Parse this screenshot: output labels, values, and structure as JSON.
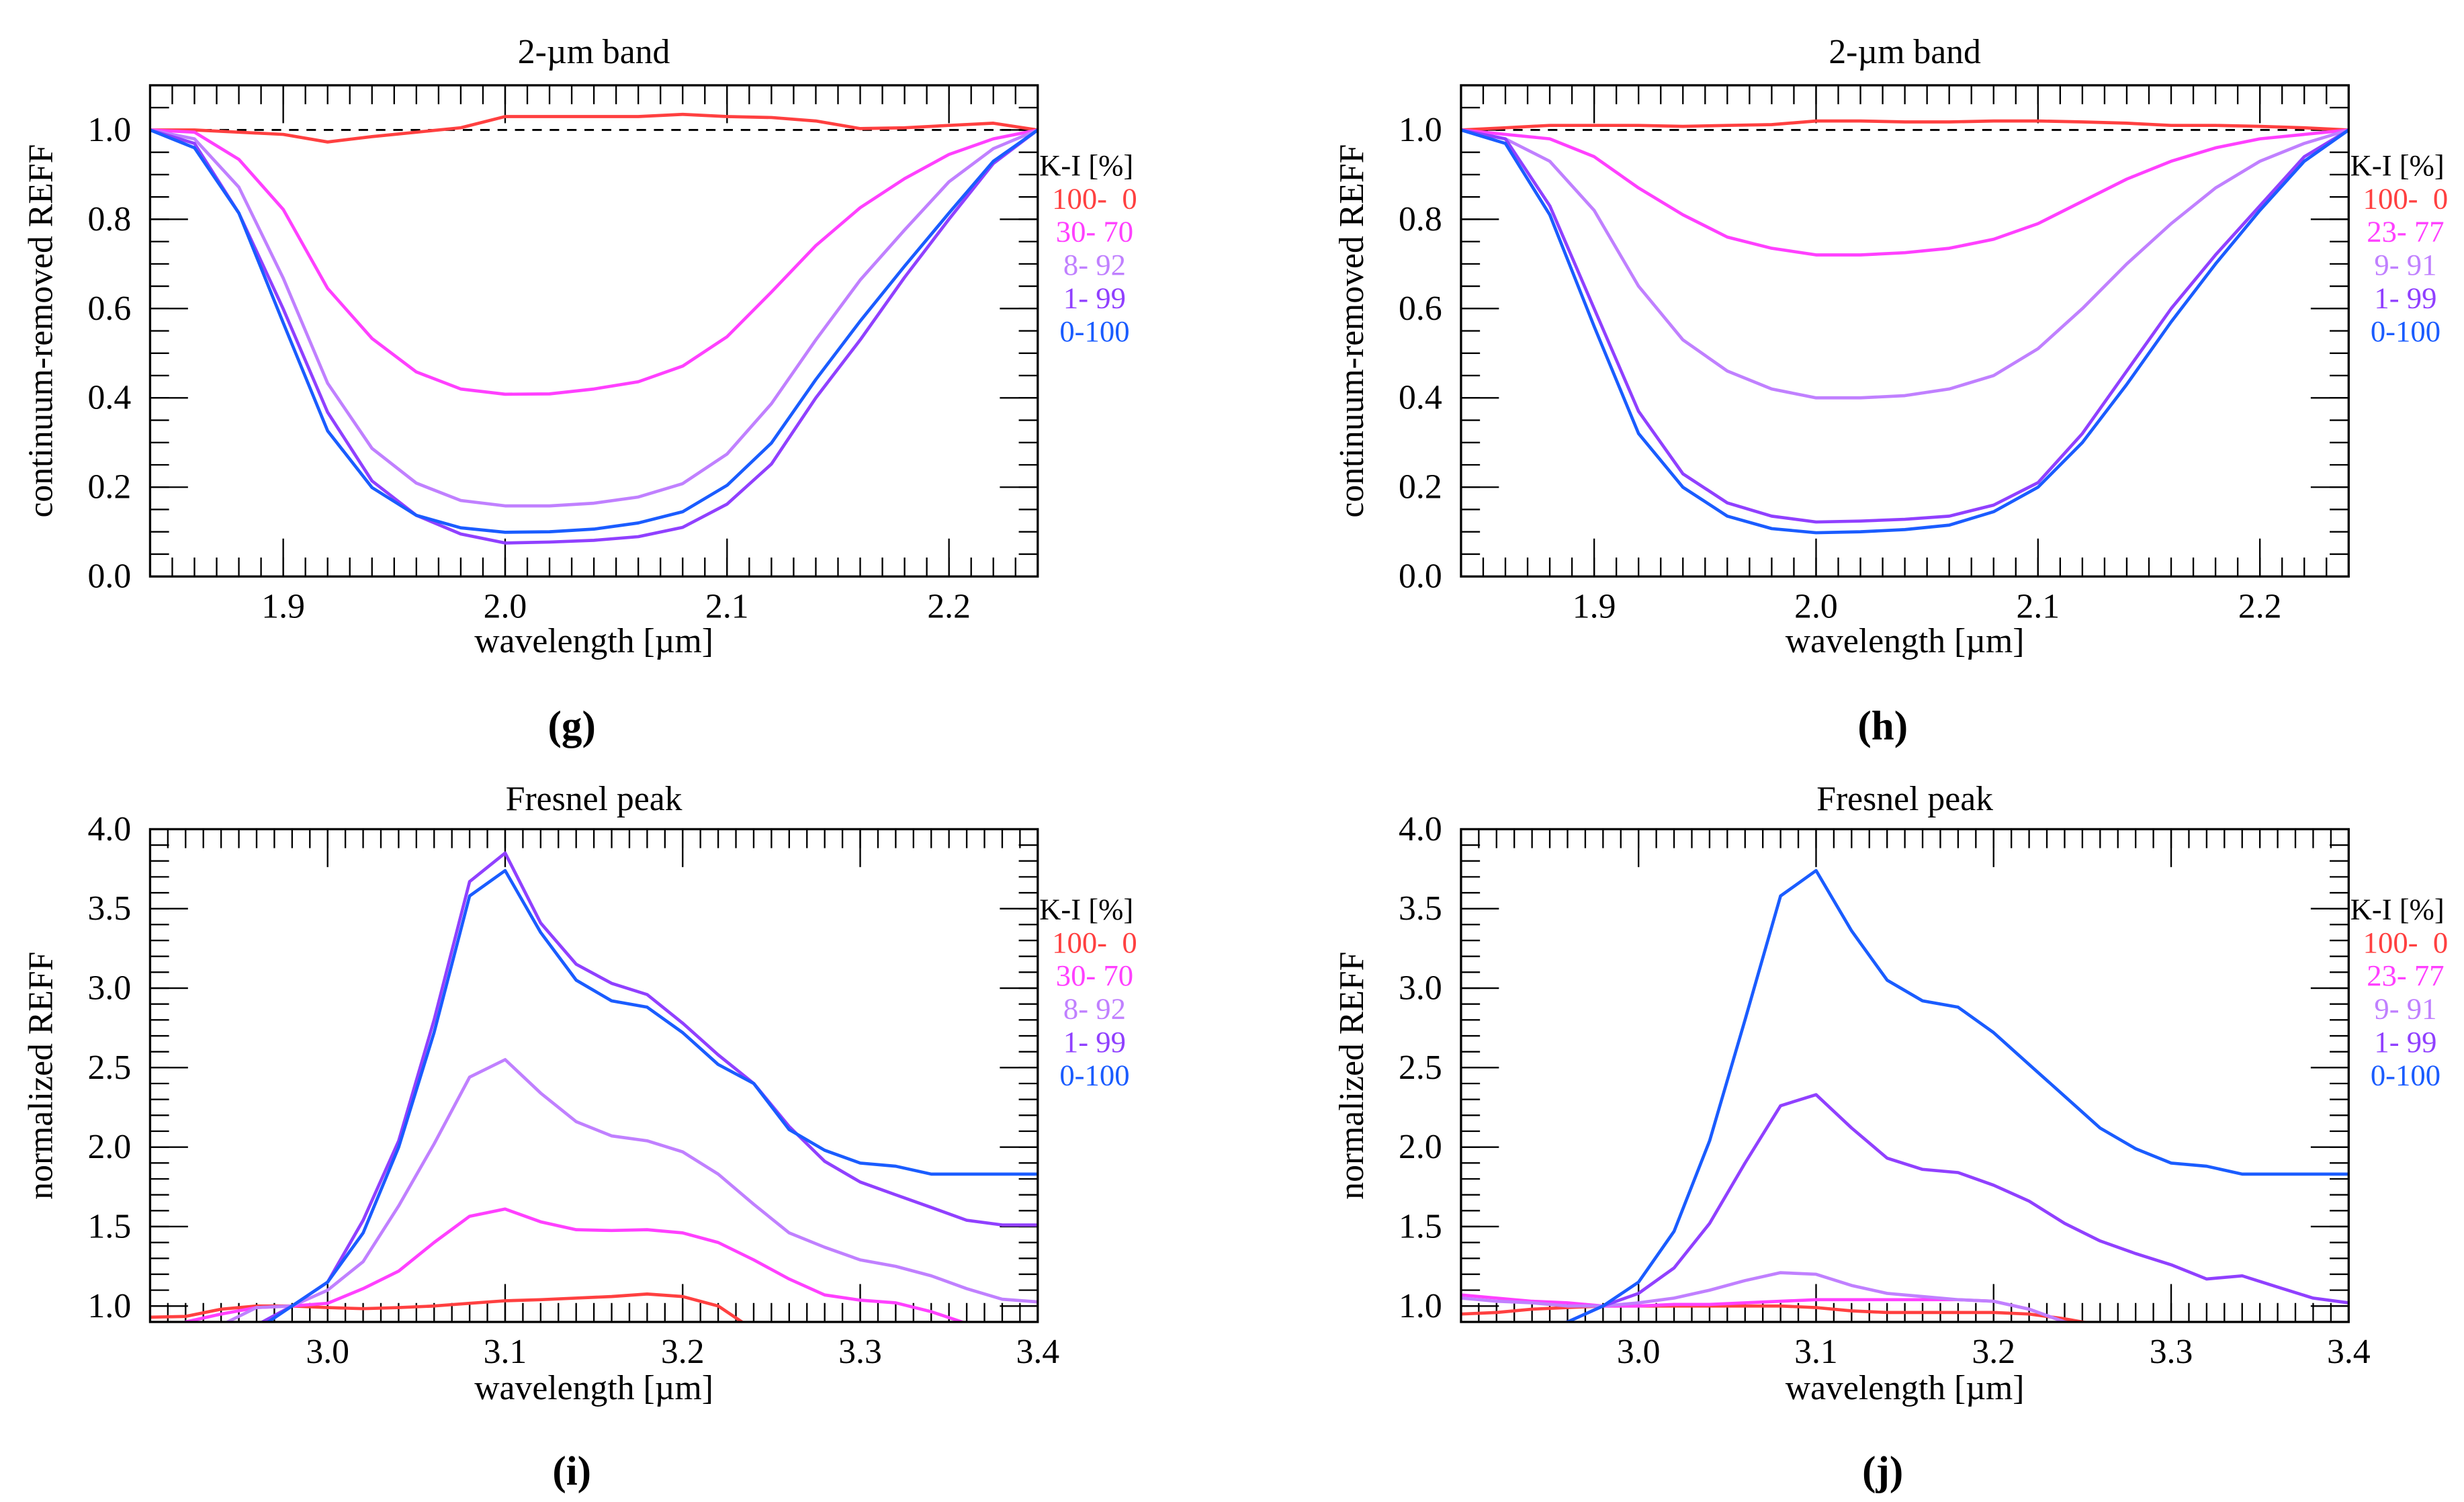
{
  "chart_data": [
    {
      "panel_label": "(g)",
      "type": "line",
      "title": "2-µm band",
      "xlabel": "wavelength [µm]",
      "ylabel": "continuum-removed REFF",
      "xlim": [
        1.84,
        2.24
      ],
      "ylim": [
        0.0,
        1.1
      ],
      "xticks": [
        1.9,
        2.0,
        2.1,
        2.2
      ],
      "xtick_labels": [
        "1.9",
        "2.0",
        "2.1",
        "2.2"
      ],
      "yticks": [
        0.0,
        0.2,
        0.4,
        0.6,
        0.8,
        1.0
      ],
      "ytick_labels": [
        "0.0",
        "0.2",
        "0.4",
        "0.6",
        "0.8",
        "1.0"
      ],
      "reference_line": 1.0,
      "legend_title": "K-I [%]",
      "legend_position": "right",
      "x": [
        1.84,
        1.86,
        1.88,
        1.9,
        1.92,
        1.94,
        1.96,
        1.98,
        2.0,
        2.02,
        2.04,
        2.06,
        2.08,
        2.1,
        2.12,
        2.14,
        2.16,
        2.18,
        2.2,
        2.22,
        2.24
      ],
      "series": [
        {
          "name": "100-  0",
          "color": "#ff4040",
          "values": [
            1.0,
            1.0,
            0.995,
            0.99,
            0.973,
            0.985,
            0.995,
            1.005,
            1.03,
            1.03,
            1.03,
            1.03,
            1.035,
            1.03,
            1.028,
            1.02,
            1.003,
            1.005,
            1.01,
            1.015,
            1.0
          ]
        },
        {
          "name": "30- 70",
          "color": "#ff40ff",
          "values": [
            1.0,
            0.995,
            0.934,
            0.822,
            0.645,
            0.533,
            0.458,
            0.42,
            0.408,
            0.409,
            0.42,
            0.436,
            0.471,
            0.537,
            0.637,
            0.741,
            0.826,
            0.891,
            0.945,
            0.98,
            1.0
          ]
        },
        {
          "name": "8- 92",
          "color": "#c080ff",
          "values": [
            1.0,
            0.98,
            0.872,
            0.668,
            0.433,
            0.287,
            0.209,
            0.17,
            0.158,
            0.158,
            0.164,
            0.178,
            0.208,
            0.274,
            0.387,
            0.53,
            0.664,
            0.776,
            0.884,
            0.958,
            1.0
          ]
        },
        {
          "name": "1- 99",
          "color": "#9040ff",
          "values": [
            1.0,
            0.97,
            0.814,
            0.599,
            0.368,
            0.214,
            0.137,
            0.095,
            0.075,
            0.077,
            0.081,
            0.089,
            0.11,
            0.162,
            0.252,
            0.4,
            0.53,
            0.67,
            0.8,
            0.925,
            1.0
          ]
        },
        {
          "name": "0-100",
          "color": "#1a5cff",
          "values": [
            1.0,
            0.96,
            0.814,
            0.568,
            0.326,
            0.199,
            0.137,
            0.109,
            0.099,
            0.1,
            0.106,
            0.12,
            0.145,
            0.204,
            0.299,
            0.441,
            0.572,
            0.695,
            0.814,
            0.93,
            1.0
          ]
        }
      ]
    },
    {
      "panel_label": "(h)",
      "type": "line",
      "title": "2-µm band",
      "xlabel": "wavelength [µm]",
      "ylabel": "continuum-removed REFF",
      "xlim": [
        1.84,
        2.24
      ],
      "ylim": [
        0.0,
        1.1
      ],
      "xticks": [
        1.9,
        2.0,
        2.1,
        2.2
      ],
      "xtick_labels": [
        "1.9",
        "2.0",
        "2.1",
        "2.2"
      ],
      "yticks": [
        0.0,
        0.2,
        0.4,
        0.6,
        0.8,
        1.0
      ],
      "ytick_labels": [
        "0.0",
        "0.2",
        "0.4",
        "0.6",
        "0.8",
        "1.0"
      ],
      "reference_line": 1.0,
      "legend_title": "K-I [%]",
      "legend_position": "right",
      "x": [
        1.84,
        1.86,
        1.88,
        1.9,
        1.92,
        1.94,
        1.96,
        1.98,
        2.0,
        2.02,
        2.04,
        2.06,
        2.08,
        2.1,
        2.12,
        2.14,
        2.16,
        2.18,
        2.2,
        2.22,
        2.24
      ],
      "series": [
        {
          "name": "100-  0",
          "color": "#ff4040",
          "values": [
            1.0,
            1.005,
            1.01,
            1.01,
            1.01,
            1.008,
            1.01,
            1.012,
            1.02,
            1.02,
            1.018,
            1.018,
            1.02,
            1.02,
            1.018,
            1.015,
            1.01,
            1.01,
            1.008,
            1.005,
            1.0
          ]
        },
        {
          "name": "23- 77",
          "color": "#ff40ff",
          "values": [
            1.0,
            0.99,
            0.98,
            0.94,
            0.87,
            0.81,
            0.76,
            0.735,
            0.72,
            0.72,
            0.725,
            0.735,
            0.755,
            0.79,
            0.84,
            0.89,
            0.93,
            0.96,
            0.98,
            0.99,
            1.0
          ]
        },
        {
          "name": "9- 91",
          "color": "#c080ff",
          "values": [
            1.0,
            0.98,
            0.93,
            0.82,
            0.65,
            0.53,
            0.46,
            0.42,
            0.4,
            0.4,
            0.405,
            0.42,
            0.45,
            0.51,
            0.6,
            0.7,
            0.79,
            0.87,
            0.93,
            0.97,
            1.0
          ]
        },
        {
          "name": "1- 99",
          "color": "#9040ff",
          "values": [
            1.0,
            0.98,
            0.83,
            0.6,
            0.37,
            0.23,
            0.165,
            0.135,
            0.122,
            0.124,
            0.128,
            0.135,
            0.16,
            0.21,
            0.32,
            0.46,
            0.6,
            0.72,
            0.83,
            0.94,
            1.0
          ]
        },
        {
          "name": "0-100",
          "color": "#1a5cff",
          "values": [
            1.0,
            0.97,
            0.81,
            0.56,
            0.32,
            0.2,
            0.135,
            0.107,
            0.098,
            0.1,
            0.105,
            0.115,
            0.145,
            0.2,
            0.3,
            0.43,
            0.57,
            0.7,
            0.82,
            0.93,
            1.0
          ]
        }
      ]
    },
    {
      "panel_label": "(i)",
      "type": "line",
      "title": "Fresnel peak",
      "xlabel": "wavelength [µm]",
      "ylabel": "normalized REFF",
      "xlim": [
        2.9,
        3.4
      ],
      "ylim": [
        0.9,
        4.0
      ],
      "xticks": [
        3.0,
        3.1,
        3.2,
        3.3,
        3.4
      ],
      "xtick_labels": [
        "3.0",
        "3.1",
        "3.2",
        "3.3",
        "3.4"
      ],
      "yticks": [
        1.0,
        1.5,
        2.0,
        2.5,
        3.0,
        3.5,
        4.0
      ],
      "ytick_labels": [
        "1.0",
        "1.5",
        "2.0",
        "2.5",
        "3.0",
        "3.5",
        "4.0"
      ],
      "legend_title": "K-I [%]",
      "legend_position": "right",
      "x": [
        2.9,
        2.92,
        2.94,
        2.96,
        2.98,
        3.0,
        3.02,
        3.04,
        3.06,
        3.08,
        3.1,
        3.12,
        3.14,
        3.16,
        3.18,
        3.2,
        3.22,
        3.24,
        3.26,
        3.28,
        3.3,
        3.32,
        3.34,
        3.36,
        3.38,
        3.4
      ],
      "series": [
        {
          "name": "100-  0",
          "color": "#ff4040",
          "values": [
            0.93,
            0.935,
            0.98,
            1.0,
            1.0,
            0.99,
            0.983,
            0.99,
            1.0,
            1.017,
            1.033,
            1.04,
            1.05,
            1.06,
            1.076,
            1.06,
            1.0,
            0.85,
            0.8,
            0.8,
            0.8,
            0.8,
            0.8,
            0.8,
            0.8,
            0.8
          ]
        },
        {
          "name": "30- 70",
          "color": "#ff40ff",
          "values": [
            0.8,
            0.9,
            0.95,
            0.99,
            1.0,
            1.017,
            1.11,
            1.22,
            1.4,
            1.565,
            1.61,
            1.53,
            1.48,
            1.475,
            1.48,
            1.46,
            1.4,
            1.29,
            1.17,
            1.07,
            1.037,
            1.02,
            0.965,
            0.89,
            0.85,
            0.8
          ]
        },
        {
          "name": "8- 92",
          "color": "#c080ff",
          "values": [
            0.8,
            0.8,
            0.88,
            0.99,
            1.0,
            1.1,
            1.28,
            1.63,
            2.02,
            2.44,
            2.55,
            2.34,
            2.16,
            2.07,
            2.04,
            1.97,
            1.83,
            1.64,
            1.46,
            1.37,
            1.29,
            1.25,
            1.19,
            1.11,
            1.043,
            1.026
          ]
        },
        {
          "name": "1- 99",
          "color": "#9040ff",
          "values": [
            0.7,
            0.75,
            0.8,
            0.88,
            1.0,
            1.15,
            1.54,
            2.04,
            2.8,
            3.67,
            3.85,
            3.41,
            3.15,
            3.03,
            2.96,
            2.78,
            2.58,
            2.4,
            2.13,
            1.91,
            1.78,
            1.7,
            1.62,
            1.54,
            1.51,
            1.51
          ]
        },
        {
          "name": "0-100",
          "color": "#1a5cff",
          "values": [
            0.6,
            0.65,
            0.7,
            0.85,
            1.0,
            1.15,
            1.46,
            2.0,
            2.72,
            3.58,
            3.74,
            3.35,
            3.05,
            2.92,
            2.88,
            2.72,
            2.52,
            2.4,
            2.11,
            1.98,
            1.9,
            1.88,
            1.83,
            1.83,
            1.83,
            1.83
          ]
        }
      ]
    },
    {
      "panel_label": "(j)",
      "type": "line",
      "title": "Fresnel peak",
      "xlabel": "wavelength [µm]",
      "ylabel": "normalized REFF",
      "xlim": [
        2.9,
        3.4
      ],
      "ylim": [
        0.9,
        4.0
      ],
      "xticks": [
        3.0,
        3.1,
        3.2,
        3.3,
        3.4
      ],
      "xtick_labels": [
        "3.0",
        "3.1",
        "3.2",
        "3.3",
        "3.4"
      ],
      "yticks": [
        1.0,
        1.5,
        2.0,
        2.5,
        3.0,
        3.5,
        4.0
      ],
      "ytick_labels": [
        "1.0",
        "1.5",
        "2.0",
        "2.5",
        "3.0",
        "3.5",
        "4.0"
      ],
      "legend_title": "K-I [%]",
      "legend_position": "right",
      "x": [
        2.9,
        2.92,
        2.94,
        2.96,
        2.98,
        3.0,
        3.02,
        3.04,
        3.06,
        3.08,
        3.1,
        3.12,
        3.14,
        3.16,
        3.18,
        3.2,
        3.22,
        3.24,
        3.26,
        3.28,
        3.3,
        3.32,
        3.34,
        3.36,
        3.38,
        3.4
      ],
      "series": [
        {
          "name": "100-  0",
          "color": "#ff4040",
          "values": [
            0.95,
            0.96,
            0.98,
            0.99,
            1.0,
            1.0,
            1.0,
            1.0,
            1.0,
            1.0,
            0.99,
            0.97,
            0.96,
            0.96,
            0.96,
            0.96,
            0.95,
            0.92,
            0.88,
            0.85,
            0.8,
            0.8,
            0.8,
            0.8,
            0.8,
            0.8
          ]
        },
        {
          "name": "23- 77",
          "color": "#ff40ff",
          "values": [
            1.07,
            1.05,
            1.03,
            1.02,
            1.0,
            1.0,
            1.01,
            1.01,
            1.02,
            1.03,
            1.04,
            1.04,
            1.04,
            1.04,
            1.04,
            1.03,
            0.98,
            0.9,
            0.85,
            0.8,
            0.8,
            0.8,
            0.8,
            0.8,
            0.8,
            0.8
          ]
        },
        {
          "name": "9- 91",
          "color": "#c080ff",
          "values": [
            1.05,
            1.03,
            1.02,
            1.0,
            1.0,
            1.02,
            1.05,
            1.1,
            1.16,
            1.21,
            1.2,
            1.13,
            1.08,
            1.06,
            1.04,
            1.03,
            0.98,
            0.9,
            0.85,
            0.8,
            0.8,
            0.8,
            0.8,
            0.8,
            0.8,
            0.8
          ]
        },
        {
          "name": "1- 99",
          "color": "#9040ff",
          "values": [
            0.8,
            0.82,
            0.85,
            0.9,
            1.0,
            1.08,
            1.24,
            1.52,
            1.9,
            2.26,
            2.33,
            2.12,
            1.93,
            1.86,
            1.84,
            1.76,
            1.66,
            1.52,
            1.41,
            1.33,
            1.26,
            1.17,
            1.19,
            1.12,
            1.05,
            1.02
          ]
        },
        {
          "name": "0-100",
          "color": "#1a5cff",
          "values": [
            0.6,
            0.65,
            0.7,
            0.9,
            1.0,
            1.15,
            1.47,
            2.04,
            2.8,
            3.58,
            3.74,
            3.36,
            3.05,
            2.92,
            2.88,
            2.72,
            2.52,
            2.32,
            2.12,
            1.99,
            1.9,
            1.88,
            1.83,
            1.83,
            1.83,
            1.83
          ]
        }
      ]
    }
  ]
}
